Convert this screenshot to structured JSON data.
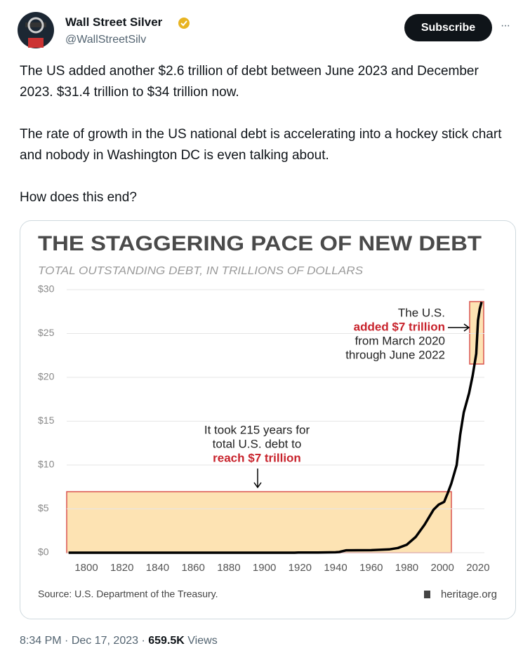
{
  "tweet": {
    "author_name": "Wall Street Silver",
    "handle": "@WallStreetSilv",
    "subscribe": "Subscribe",
    "more": "···",
    "paragraphs": [
      "The US added another $2.6 trillion of debt between June 2023 and December 2023. $31.4 trillion to $34 trillion now.",
      "The rate of growth in the US national debt is accelerating into a hockey stick chart and nobody in Washington DC is even talking about.",
      "How does this end?"
    ],
    "time": "8:34 PM",
    "separator": "·",
    "date": "Dec 17, 2023",
    "views": "659.5K",
    "views_label": "Views"
  },
  "chart_data": {
    "type": "line",
    "title": "THE STAGGERING PACE OF NEW DEBT",
    "subtitle": "TOTAL OUTSTANDING DEBT, IN TRILLIONS OF DOLLARS",
    "x": [
      1790,
      1860,
      1866,
      1917,
      1919,
      1930,
      1940,
      1942,
      1946,
      1960,
      1970,
      1975,
      1980,
      1985,
      1990,
      1995,
      1998,
      2000,
      2001,
      2003,
      2005,
      2008,
      2010,
      2012,
      2015,
      2017,
      2019,
      2020,
      2021,
      2022
    ],
    "values": [
      0,
      0,
      0.003,
      0.003,
      0.027,
      0.016,
      0.05,
      0.08,
      0.27,
      0.29,
      0.38,
      0.54,
      0.91,
      1.8,
      3.2,
      4.9,
      5.5,
      5.7,
      5.8,
      6.8,
      7.9,
      10,
      13.5,
      16,
      18.2,
      20.2,
      22.7,
      26.5,
      27.8,
      28.6
    ],
    "color": "#000000",
    "xlim": [
      1788,
      2028
    ],
    "xticks": [
      1800,
      1820,
      1840,
      1860,
      1880,
      1900,
      1920,
      1940,
      1960,
      1980,
      2000,
      2020
    ],
    "ylim": [
      0,
      30
    ],
    "yticks": [
      {
        "value": 0,
        "label": "$0"
      },
      {
        "value": 5,
        "label": "$5"
      },
      {
        "value": 10,
        "label": "$10"
      },
      {
        "value": 15,
        "label": "$15"
      },
      {
        "value": 20,
        "label": "$20"
      },
      {
        "value": 25,
        "label": "$25"
      },
      {
        "value": 30,
        "label": "$30"
      }
    ],
    "grid": true,
    "annotations": [
      {
        "lines": [
          "It took 215 years for",
          "total U.S. debt to",
          "reach $7 trillion"
        ]
      },
      {
        "lines": [
          "The U.S.",
          "added $7 trillion",
          "from March 2020",
          "through June 2022"
        ]
      }
    ],
    "source": "Source: U.S. Department of the Treasury.",
    "credit": "heritage.org"
  }
}
